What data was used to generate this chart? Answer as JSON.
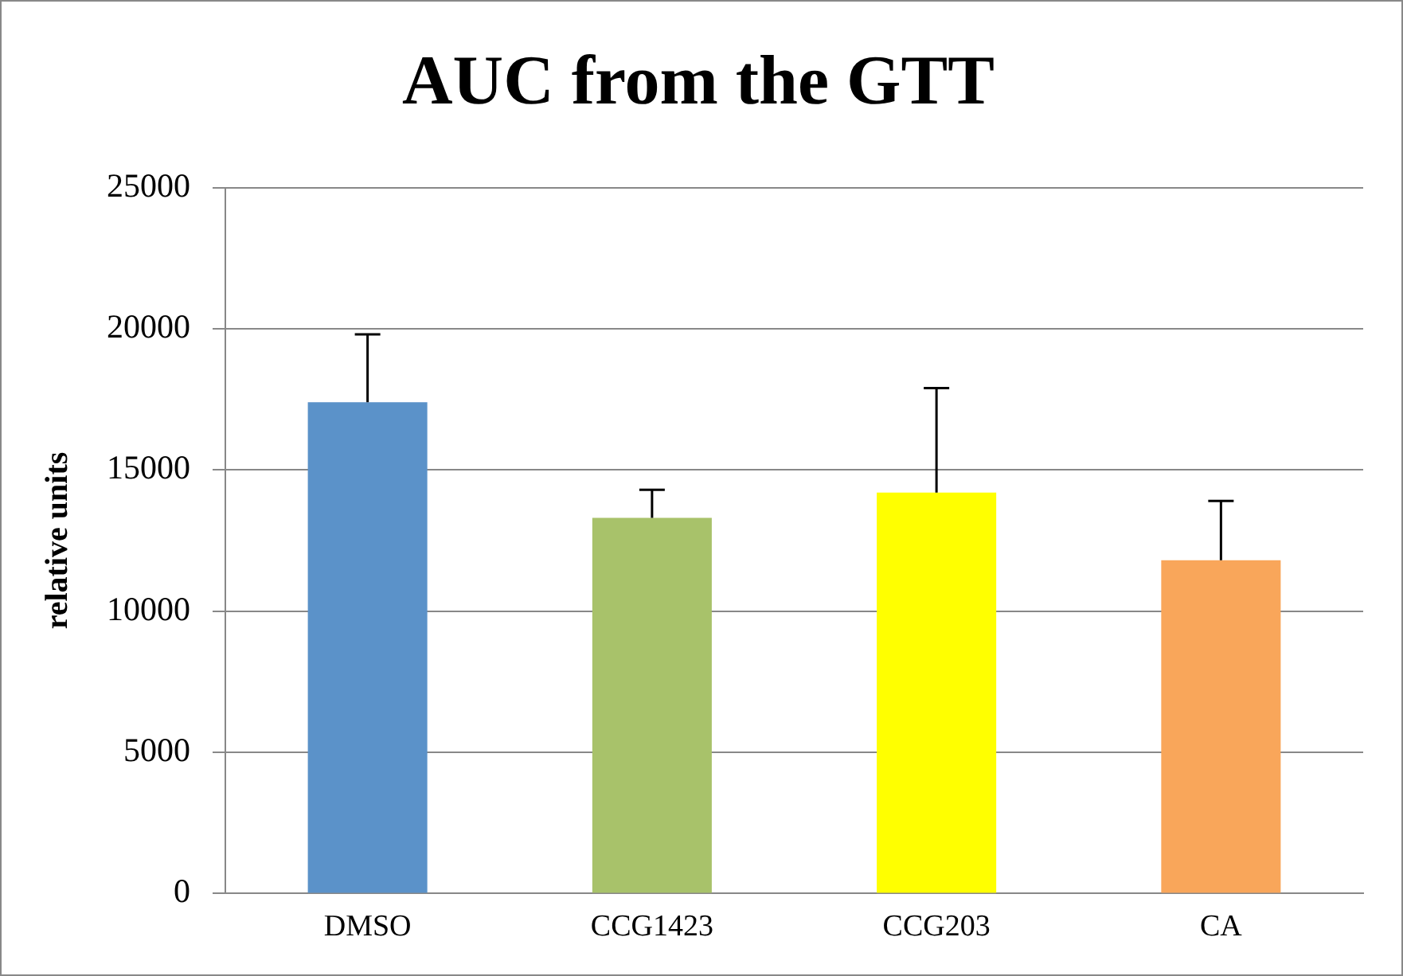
{
  "chart_data": {
    "type": "bar",
    "title": "AUC from the GTT",
    "ylabel": "relative units",
    "categories": [
      "DMSO",
      "CCG1423",
      "CCG203",
      "CA"
    ],
    "values": [
      17400,
      13300,
      14200,
      11800
    ],
    "colors": [
      "#5b92c9",
      "#a8c26a",
      "#ffff00",
      "#f9a65a"
    ],
    "errors": [
      [
        17400,
        19800
      ],
      [
        13300,
        14300
      ],
      [
        14200,
        17900
      ],
      [
        11800,
        13900
      ]
    ],
    "ylim": [
      0,
      25000
    ],
    "yticks": [
      0,
      5000,
      10000,
      15000,
      20000,
      25000
    ],
    "grid": "y",
    "legend": false
  }
}
